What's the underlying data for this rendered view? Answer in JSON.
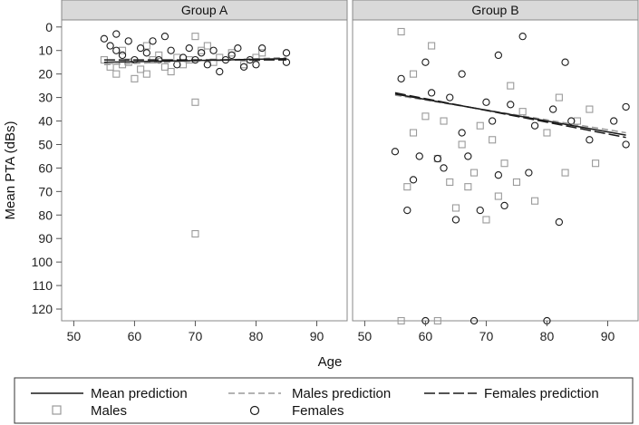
{
  "chart_data": {
    "type": "scatter",
    "xlabel": "Age",
    "ylabel": "Mean PTA (dBs)",
    "x_ticks": [
      50,
      60,
      70,
      80,
      90
    ],
    "y_ticks": [
      0,
      10,
      20,
      30,
      40,
      50,
      60,
      70,
      80,
      90,
      100,
      110,
      120
    ],
    "xlim": [
      48,
      95
    ],
    "ylim": [
      125,
      -3
    ],
    "y_inverted": true,
    "panels": [
      {
        "title": "Group A",
        "lines": {
          "mean": [
            [
              55,
              15
            ],
            [
              85,
              13.5
            ]
          ],
          "males": [
            [
              55,
              16
            ],
            [
              85,
              13
            ]
          ],
          "females": [
            [
              55,
              14
            ],
            [
              85,
              14
            ]
          ]
        },
        "males_points": [
          [
            55,
            14
          ],
          [
            56,
            17
          ],
          [
            57,
            20
          ],
          [
            58,
            16
          ],
          [
            59,
            15
          ],
          [
            60,
            22
          ],
          [
            61,
            18
          ],
          [
            62,
            20
          ],
          [
            63,
            14
          ],
          [
            64,
            12
          ],
          [
            65,
            17
          ],
          [
            66,
            19
          ],
          [
            67,
            13
          ],
          [
            68,
            16
          ],
          [
            69,
            14
          ],
          [
            70,
            4
          ],
          [
            71,
            10
          ],
          [
            72,
            8
          ],
          [
            73,
            15
          ],
          [
            74,
            13
          ],
          [
            76,
            11
          ],
          [
            78,
            16
          ],
          [
            80,
            13
          ],
          [
            81,
            11
          ],
          [
            70,
            32
          ],
          [
            70,
            88
          ],
          [
            58,
            10
          ],
          [
            62,
            8
          ]
        ],
        "females_points": [
          [
            55,
            5
          ],
          [
            56,
            8
          ],
          [
            57,
            10
          ],
          [
            57,
            3
          ],
          [
            58,
            12
          ],
          [
            59,
            6
          ],
          [
            60,
            14
          ],
          [
            61,
            9
          ],
          [
            62,
            11
          ],
          [
            63,
            6
          ],
          [
            64,
            14
          ],
          [
            65,
            4
          ],
          [
            66,
            10
          ],
          [
            67,
            16
          ],
          [
            68,
            13
          ],
          [
            69,
            9
          ],
          [
            70,
            14
          ],
          [
            71,
            11
          ],
          [
            72,
            16
          ],
          [
            73,
            10
          ],
          [
            74,
            19
          ],
          [
            75,
            14
          ],
          [
            76,
            12
          ],
          [
            77,
            9
          ],
          [
            78,
            17
          ],
          [
            79,
            14
          ],
          [
            80,
            16
          ],
          [
            81,
            9
          ],
          [
            85,
            11
          ],
          [
            85,
            15
          ]
        ]
      },
      {
        "title": "Group B",
        "lines": {
          "mean": [
            [
              55,
              28.5
            ],
            [
              93,
              46
            ]
          ],
          "males": [
            [
              55,
              29
            ],
            [
              93,
              45
            ]
          ],
          "females": [
            [
              55,
              28
            ],
            [
              93,
              47
            ]
          ]
        },
        "males_points": [
          [
            56,
            2
          ],
          [
            56,
            125
          ],
          [
            57,
            68
          ],
          [
            58,
            45
          ],
          [
            60,
            38
          ],
          [
            61,
            8
          ],
          [
            62,
            56
          ],
          [
            63,
            40
          ],
          [
            64,
            66
          ],
          [
            65,
            77
          ],
          [
            66,
            50
          ],
          [
            67,
            68
          ],
          [
            68,
            62
          ],
          [
            69,
            42
          ],
          [
            70,
            82
          ],
          [
            71,
            48
          ],
          [
            72,
            72
          ],
          [
            73,
            58
          ],
          [
            75,
            66
          ],
          [
            76,
            36
          ],
          [
            78,
            74
          ],
          [
            80,
            45
          ],
          [
            82,
            30
          ],
          [
            83,
            62
          ],
          [
            85,
            40
          ],
          [
            87,
            35
          ],
          [
            88,
            58
          ],
          [
            62,
            125
          ],
          [
            58,
            20
          ],
          [
            74,
            25
          ]
        ],
        "females_points": [
          [
            55,
            53
          ],
          [
            56,
            22
          ],
          [
            57,
            78
          ],
          [
            58,
            65
          ],
          [
            59,
            55
          ],
          [
            60,
            125
          ],
          [
            61,
            28
          ],
          [
            62,
            56
          ],
          [
            63,
            60
          ],
          [
            64,
            30
          ],
          [
            65,
            82
          ],
          [
            66,
            45
          ],
          [
            67,
            55
          ],
          [
            68,
            125
          ],
          [
            69,
            78
          ],
          [
            70,
            32
          ],
          [
            71,
            40
          ],
          [
            72,
            63
          ],
          [
            73,
            76
          ],
          [
            74,
            33
          ],
          [
            76,
            4
          ],
          [
            77,
            62
          ],
          [
            78,
            42
          ],
          [
            80,
            125
          ],
          [
            81,
            35
          ],
          [
            82,
            83
          ],
          [
            83,
            15
          ],
          [
            84,
            40
          ],
          [
            87,
            48
          ],
          [
            91,
            40
          ],
          [
            93,
            34
          ],
          [
            93,
            50
          ],
          [
            60,
            15
          ],
          [
            66,
            20
          ],
          [
            72,
            12
          ]
        ]
      }
    ]
  },
  "legend": {
    "mean_label": "Mean prediction",
    "males_pred_label": "Males prediction",
    "females_pred_label": "Females prediction",
    "males_label": "Males",
    "females_label": "Females"
  },
  "colors": {
    "header_bg": "#d9d9d9",
    "mean_line": "#1a1a1a",
    "males_line": "#9a9a9a",
    "females_line": "#1a1a1a",
    "males_marker": "#9a9a9a",
    "females_marker": "#1a1a1a"
  }
}
